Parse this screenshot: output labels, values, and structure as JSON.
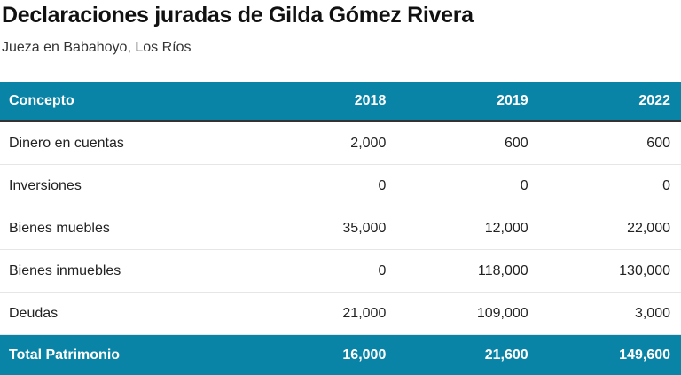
{
  "title": "Declaraciones juradas de Gilda Gómez Rivera",
  "subtitle": "Jueza en Babahoyo, Los Ríos",
  "headers": [
    "Concepto",
    "2018",
    "2019",
    "2022"
  ],
  "rows": [
    [
      "Dinero en cuentas",
      "2,000",
      "600",
      "600"
    ],
    [
      "Inversiones",
      "0",
      "0",
      "0"
    ],
    [
      "Bienes muebles",
      "35,000",
      "12,000",
      "22,000"
    ],
    [
      "Bienes inmuebles",
      "0",
      "118,000",
      "130,000"
    ],
    [
      "Deudas",
      "21,000",
      "109,000",
      "3,000"
    ]
  ],
  "total": [
    "Total Patrimonio",
    "16,000",
    "21,600",
    "149,600"
  ]
}
